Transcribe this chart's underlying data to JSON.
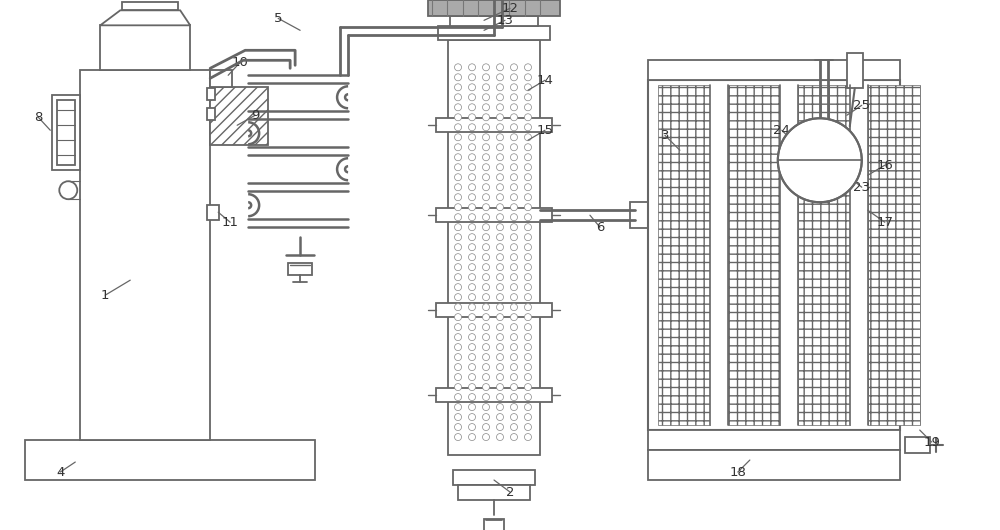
{
  "bg_color": "#ffffff",
  "line_color": "#666666",
  "label_color": "#333333",
  "fig_width": 10.0,
  "fig_height": 5.3,
  "dpi": 100
}
